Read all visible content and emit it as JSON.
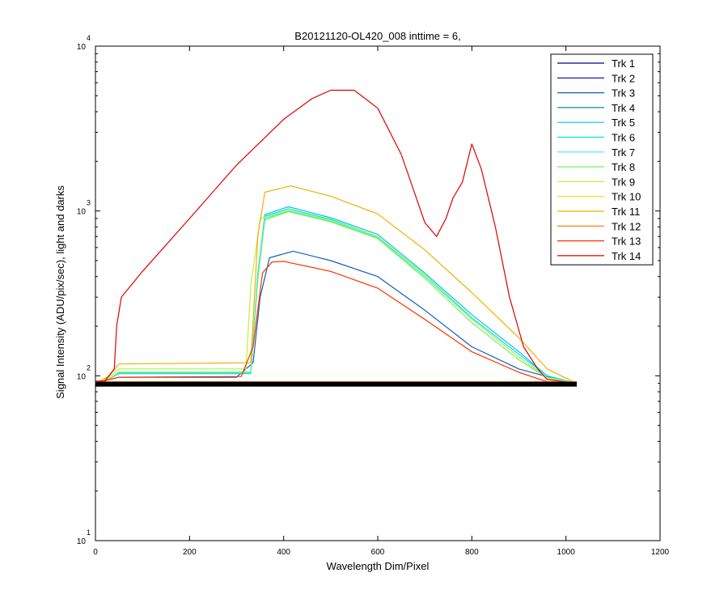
{
  "chart_data": {
    "type": "line",
    "title": "B20121120-OL420_008 inttime = 6,",
    "xlabel": "Wavelength Dim/Pixel",
    "ylabel": "Signal Intensity (ADU/pix/sec), light and darks",
    "xlim": [
      0,
      1200
    ],
    "ylim": [
      10,
      10000
    ],
    "yscale": "log",
    "grid": false,
    "legend_position": "top-right",
    "x_ticks": [
      0,
      200,
      400,
      600,
      800,
      1000,
      1200
    ],
    "x_tick_labels": [
      "0",
      "200",
      "400",
      "600",
      "800",
      "1000",
      "1200"
    ],
    "y_ticks": [
      {
        "value": 10,
        "base": "10",
        "exp": "1"
      },
      {
        "value": 100,
        "base": "10",
        "exp": "2"
      },
      {
        "value": 1000,
        "base": "10",
        "exp": "3"
      },
      {
        "value": 10000,
        "base": "10",
        "exp": "4"
      }
    ],
    "series": [
      {
        "name": "Trk 1",
        "color": "#00008f",
        "points": [
          [
            0,
            90
          ],
          [
            1023,
            90
          ]
        ]
      },
      {
        "name": "Trk 2",
        "color": "#0000bf",
        "points": [
          [
            0,
            90
          ],
          [
            1023,
            90
          ]
        ]
      },
      {
        "name": "Trk 3",
        "color": "#0f5fbf",
        "points": [
          [
            0,
            90
          ],
          [
            30,
            95
          ],
          [
            50,
            98
          ],
          [
            300,
            98
          ],
          [
            335,
            120
          ],
          [
            350,
            300
          ],
          [
            370,
            520
          ],
          [
            420,
            570
          ],
          [
            500,
            500
          ],
          [
            600,
            400
          ],
          [
            700,
            250
          ],
          [
            800,
            150
          ],
          [
            900,
            110
          ],
          [
            1000,
            92
          ],
          [
            1023,
            90
          ]
        ]
      },
      {
        "name": "Trk 4",
        "color": "#0090a0",
        "points": [
          [
            0,
            90
          ],
          [
            1023,
            90
          ]
        ]
      },
      {
        "name": "Trk 5",
        "color": "#00c0ff",
        "points": [
          [
            0,
            90
          ],
          [
            30,
            96
          ],
          [
            50,
            103
          ],
          [
            330,
            103
          ],
          [
            345,
            400
          ],
          [
            360,
            950
          ],
          [
            410,
            1060
          ],
          [
            500,
            910
          ],
          [
            600,
            720
          ],
          [
            700,
            420
          ],
          [
            800,
            235
          ],
          [
            900,
            140
          ],
          [
            960,
            100
          ],
          [
            1023,
            90
          ]
        ]
      },
      {
        "name": "Trk 6",
        "color": "#00e0e0",
        "points": [
          [
            0,
            90
          ],
          [
            30,
            96
          ],
          [
            50,
            105
          ],
          [
            330,
            105
          ],
          [
            345,
            420
          ],
          [
            360,
            930
          ],
          [
            410,
            1030
          ],
          [
            500,
            890
          ],
          [
            600,
            700
          ],
          [
            700,
            410
          ],
          [
            800,
            225
          ],
          [
            900,
            135
          ],
          [
            960,
            100
          ],
          [
            1023,
            90
          ]
        ]
      },
      {
        "name": "Trk 7",
        "color": "#40f0d0",
        "points": [
          [
            0,
            90
          ],
          [
            30,
            96
          ],
          [
            50,
            104
          ],
          [
            330,
            104
          ],
          [
            345,
            400
          ],
          [
            360,
            900
          ],
          [
            410,
            1000
          ],
          [
            500,
            870
          ],
          [
            600,
            690
          ],
          [
            700,
            400
          ],
          [
            800,
            220
          ],
          [
            900,
            130
          ],
          [
            960,
            98
          ],
          [
            1023,
            90
          ]
        ]
      },
      {
        "name": "Trk 8",
        "color": "#70f070",
        "points": [
          [
            0,
            90
          ],
          [
            30,
            96
          ],
          [
            50,
            104
          ],
          [
            330,
            104
          ],
          [
            345,
            380
          ],
          [
            360,
            880
          ],
          [
            410,
            990
          ],
          [
            500,
            860
          ],
          [
            600,
            680
          ],
          [
            700,
            390
          ],
          [
            800,
            210
          ],
          [
            900,
            125
          ],
          [
            960,
            97
          ],
          [
            1023,
            90
          ]
        ]
      },
      {
        "name": "Trk 9",
        "color": "#c0f040",
        "points": [
          [
            0,
            90
          ],
          [
            30,
            98
          ],
          [
            50,
            110
          ],
          [
            320,
            110
          ],
          [
            330,
            350
          ],
          [
            350,
            900
          ],
          [
            410,
            1010
          ],
          [
            500,
            880
          ],
          [
            600,
            700
          ],
          [
            700,
            410
          ],
          [
            800,
            220
          ],
          [
            900,
            130
          ],
          [
            960,
            97
          ],
          [
            1023,
            90
          ]
        ]
      },
      {
        "name": "Trk 10",
        "color": "#e0e000",
        "points": [
          [
            0,
            90
          ],
          [
            1023,
            90
          ]
        ]
      },
      {
        "name": "Trk 11",
        "color": "#f0b000",
        "points": [
          [
            0,
            90
          ],
          [
            30,
            100
          ],
          [
            50,
            118
          ],
          [
            330,
            120
          ],
          [
            345,
            700
          ],
          [
            360,
            1300
          ],
          [
            415,
            1420
          ],
          [
            500,
            1230
          ],
          [
            600,
            960
          ],
          [
            700,
            580
          ],
          [
            800,
            320
          ],
          [
            900,
            170
          ],
          [
            960,
            110
          ],
          [
            1023,
            90
          ]
        ]
      },
      {
        "name": "Trk 12",
        "color": "#ff7000",
        "points": [
          [
            0,
            92
          ],
          [
            1023,
            92
          ]
        ]
      },
      {
        "name": "Trk 13",
        "color": "#ff3000",
        "points": [
          [
            0,
            90
          ],
          [
            30,
            95
          ],
          [
            50,
            98
          ],
          [
            310,
            99
          ],
          [
            335,
            150
          ],
          [
            355,
            420
          ],
          [
            375,
            490
          ],
          [
            400,
            495
          ],
          [
            500,
            430
          ],
          [
            600,
            340
          ],
          [
            700,
            220
          ],
          [
            800,
            140
          ],
          [
            900,
            105
          ],
          [
            960,
            92
          ],
          [
            1023,
            90
          ]
        ]
      },
      {
        "name": "Trk 14",
        "color": "#e00000",
        "points": [
          [
            0,
            93
          ],
          [
            20,
            93
          ],
          [
            40,
            110
          ],
          [
            45,
            200
          ],
          [
            55,
            300
          ],
          [
            100,
            430
          ],
          [
            200,
            900
          ],
          [
            300,
            1900
          ],
          [
            400,
            3600
          ],
          [
            460,
            4800
          ],
          [
            500,
            5400
          ],
          [
            550,
            5400
          ],
          [
            600,
            4200
          ],
          [
            650,
            2200
          ],
          [
            700,
            850
          ],
          [
            725,
            700
          ],
          [
            745,
            900
          ],
          [
            760,
            1200
          ],
          [
            780,
            1500
          ],
          [
            800,
            2550
          ],
          [
            820,
            1800
          ],
          [
            850,
            800
          ],
          [
            880,
            300
          ],
          [
            910,
            150
          ],
          [
            940,
            110
          ],
          [
            960,
            95
          ],
          [
            1023,
            90
          ]
        ]
      }
    ],
    "legend": [
      "Trk 1",
      "Trk 2",
      "Trk 3",
      "Trk 4",
      "Trk 5",
      "Trk 6",
      "Trk 7",
      "Trk 8",
      "Trk 9",
      "Trk 10",
      "Trk 11",
      "Trk 12",
      "Trk 13",
      "Trk 14"
    ]
  }
}
